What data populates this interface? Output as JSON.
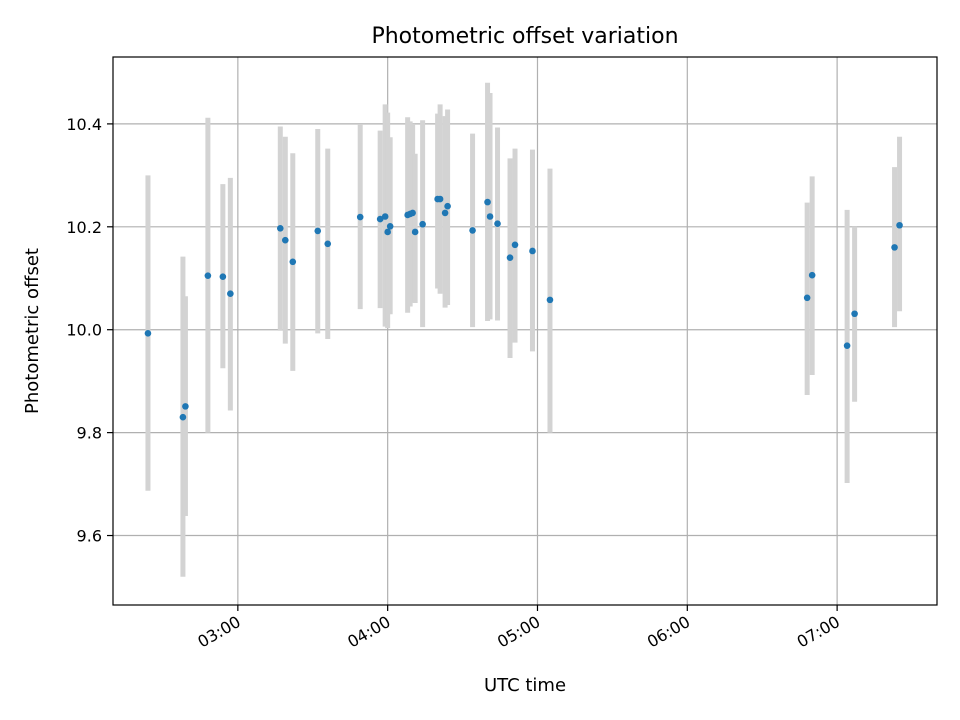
{
  "chart_data": {
    "type": "scatter",
    "title": "Photometric offset variation",
    "xlabel": "UTC time",
    "ylabel": "Photometric offset",
    "x_axis_kind": "time",
    "xlim": [
      "02:10",
      "07:40"
    ],
    "ylim": [
      9.465,
      10.53
    ],
    "xticks": [
      "03:00",
      "04:00",
      "05:00",
      "06:00",
      "07:00"
    ],
    "yticks": [
      9.6,
      9.8,
      10.0,
      10.2,
      10.4
    ],
    "grid": true,
    "legend": "none",
    "marker_color": "#1f77b4",
    "errorbar_color": "#d3d3d3",
    "series": [
      {
        "points": [
          {
            "x": "02:24",
            "y": 9.993,
            "ylo": 9.687,
            "yhi": 10.3
          },
          {
            "x": "02:38",
            "y": 9.83,
            "ylo": 9.52,
            "yhi": 10.142
          },
          {
            "x": "02:39",
            "y": 9.851,
            "ylo": 9.638,
            "yhi": 10.065
          },
          {
            "x": "02:48",
            "y": 10.105,
            "ylo": 9.8,
            "yhi": 10.412
          },
          {
            "x": "02:54",
            "y": 10.103,
            "ylo": 9.925,
            "yhi": 10.283
          },
          {
            "x": "02:57",
            "y": 10.07,
            "ylo": 9.843,
            "yhi": 10.295
          },
          {
            "x": "03:17",
            "y": 10.197,
            "ylo": 9.998,
            "yhi": 10.395
          },
          {
            "x": "03:19",
            "y": 10.174,
            "ylo": 9.973,
            "yhi": 10.375
          },
          {
            "x": "03:22",
            "y": 10.132,
            "ylo": 9.92,
            "yhi": 10.343
          },
          {
            "x": "03:32",
            "y": 10.192,
            "ylo": 9.993,
            "yhi": 10.39
          },
          {
            "x": "03:36",
            "y": 10.167,
            "ylo": 9.982,
            "yhi": 10.352
          },
          {
            "x": "03:49",
            "y": 10.219,
            "ylo": 10.04,
            "yhi": 10.398
          },
          {
            "x": "03:57",
            "y": 10.215,
            "ylo": 10.042,
            "yhi": 10.387
          },
          {
            "x": "03:59",
            "y": 10.22,
            "ylo": 10.006,
            "yhi": 10.438
          },
          {
            "x": "04:00",
            "y": 10.19,
            "ylo": 10.003,
            "yhi": 10.422
          },
          {
            "x": "04:01",
            "y": 10.201,
            "ylo": 10.03,
            "yhi": 10.374
          },
          {
            "x": "04:08",
            "y": 10.223,
            "ylo": 10.033,
            "yhi": 10.413
          },
          {
            "x": "04:09",
            "y": 10.225,
            "ylo": 10.045,
            "yhi": 10.405
          },
          {
            "x": "04:10",
            "y": 10.227,
            "ylo": 10.053,
            "yhi": 10.4
          },
          {
            "x": "04:11",
            "y": 10.19,
            "ylo": 10.052,
            "yhi": 10.342
          },
          {
            "x": "04:14",
            "y": 10.205,
            "ylo": 10.005,
            "yhi": 10.407
          },
          {
            "x": "04:20",
            "y": 10.254,
            "ylo": 10.08,
            "yhi": 10.42
          },
          {
            "x": "04:21",
            "y": 10.254,
            "ylo": 10.07,
            "yhi": 10.438
          },
          {
            "x": "04:23",
            "y": 10.227,
            "ylo": 10.043,
            "yhi": 10.415
          },
          {
            "x": "04:24",
            "y": 10.24,
            "ylo": 10.048,
            "yhi": 10.428
          },
          {
            "x": "04:34",
            "y": 10.193,
            "ylo": 10.005,
            "yhi": 10.381
          },
          {
            "x": "04:40",
            "y": 10.248,
            "ylo": 10.017,
            "yhi": 10.48
          },
          {
            "x": "04:41",
            "y": 10.22,
            "ylo": 10.02,
            "yhi": 10.46
          },
          {
            "x": "04:44",
            "y": 10.206,
            "ylo": 10.018,
            "yhi": 10.393
          },
          {
            "x": "04:49",
            "y": 10.14,
            "ylo": 9.945,
            "yhi": 10.333
          },
          {
            "x": "04:51",
            "y": 10.165,
            "ylo": 9.975,
            "yhi": 10.352
          },
          {
            "x": "04:58",
            "y": 10.153,
            "ylo": 9.958,
            "yhi": 10.35
          },
          {
            "x": "05:05",
            "y": 10.058,
            "ylo": 9.8,
            "yhi": 10.313
          },
          {
            "x": "06:48",
            "y": 10.062,
            "ylo": 9.873,
            "yhi": 10.247
          },
          {
            "x": "06:50",
            "y": 10.106,
            "ylo": 9.912,
            "yhi": 10.298
          },
          {
            "x": "07:04",
            "y": 9.969,
            "ylo": 9.702,
            "yhi": 10.233
          },
          {
            "x": "07:07",
            "y": 10.031,
            "ylo": 9.86,
            "yhi": 10.2
          },
          {
            "x": "07:23",
            "y": 10.16,
            "ylo": 10.005,
            "yhi": 10.316
          },
          {
            "x": "07:25",
            "y": 10.203,
            "ylo": 10.036,
            "yhi": 10.375
          }
        ]
      }
    ]
  }
}
